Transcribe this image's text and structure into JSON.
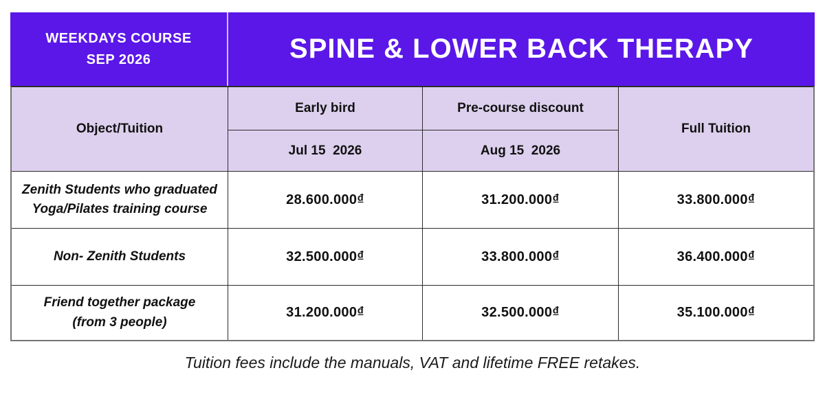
{
  "header": {
    "course_line1": "WEEKDAYS COURSE",
    "course_line2": "SEP 2026",
    "title": "SPINE & LOWER BACK THERAPY"
  },
  "table": {
    "col_object": "Object/Tuition",
    "early_bird_label": "Early bird",
    "early_bird_date": "Jul 15  2026",
    "pre_course_label": "Pre-course discount",
    "pre_course_date": "Aug 15  2026",
    "full_tuition_label": "Full Tuition",
    "rows": [
      {
        "label_line1": "Zenith Students who graduated",
        "label_line2": "Yoga/Pilates training course",
        "early_bird": "28.600.000₫",
        "pre_course": "31.200.000₫",
        "full_tuition": "33.800.000₫"
      },
      {
        "label_line1": "Non- Zenith Students",
        "label_line2": "",
        "early_bird": "32.500.000₫",
        "pre_course": "33.800.000₫",
        "full_tuition": "36.400.000₫"
      },
      {
        "label_line1": "Friend together package",
        "label_line2": "(from 3 people)",
        "early_bird": "31.200.000₫",
        "pre_course": "32.500.000₫",
        "full_tuition": "35.100.000₫"
      }
    ]
  },
  "footer": {
    "note": "Tuition fees include the manuals, VAT and lifetime FREE retakes."
  },
  "colors": {
    "banner_purple": "#5a17e8",
    "header_lavender": "#ddd0ee",
    "border_inner": "#2b2b2b",
    "border_outer": "#757575",
    "text": "#111111"
  }
}
